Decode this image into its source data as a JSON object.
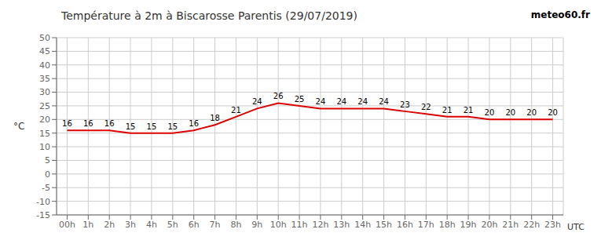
{
  "chart_data": {
    "type": "line",
    "title": "Température à 2m à Biscarosse Parentis (29/07/2019)",
    "ylabel": "°C",
    "x": [
      0,
      1,
      2,
      3,
      4,
      5,
      6,
      7,
      8,
      9,
      10,
      11,
      12,
      13,
      14,
      15,
      16,
      17,
      18,
      19,
      20,
      21,
      22,
      23
    ],
    "values": [
      16,
      16,
      16,
      15,
      15,
      15,
      16,
      18,
      21,
      24,
      26,
      25,
      24,
      24,
      24,
      24,
      23,
      22,
      21,
      21,
      20,
      20,
      20,
      20
    ],
    "color": "#dd0000",
    "xlim": [
      -0.5,
      23.5
    ],
    "xticks": [
      {
        "value": 0,
        "label": "00h"
      },
      {
        "value": 1,
        "label": "1h"
      },
      {
        "value": 2,
        "label": "2h"
      },
      {
        "value": 3,
        "label": "3h"
      },
      {
        "value": 4,
        "label": "4h"
      },
      {
        "value": 5,
        "label": "5h"
      },
      {
        "value": 6,
        "label": "6h"
      },
      {
        "value": 7,
        "label": "7h"
      },
      {
        "value": 8,
        "label": "8h"
      },
      {
        "value": 9,
        "label": "9h"
      },
      {
        "value": 10,
        "label": "10h"
      },
      {
        "value": 11,
        "label": "11h"
      },
      {
        "value": 12,
        "label": "12h"
      },
      {
        "value": 13,
        "label": "13h"
      },
      {
        "value": 14,
        "label": "14h"
      },
      {
        "value": 15,
        "label": "15h"
      },
      {
        "value": 16,
        "label": "16h"
      },
      {
        "value": 17,
        "label": "17h"
      },
      {
        "value": 18,
        "label": "18h"
      },
      {
        "value": 19,
        "label": "19h"
      },
      {
        "value": 20,
        "label": "20h"
      },
      {
        "value": 21,
        "label": "21h"
      },
      {
        "value": 22,
        "label": "22h"
      },
      {
        "value": 23,
        "label": "23h"
      }
    ],
    "ylim": [
      -15,
      50
    ],
    "yticks": [
      -15,
      -10,
      -5,
      0,
      5,
      10,
      15,
      20,
      25,
      30,
      35,
      40,
      45,
      50
    ],
    "grid": true,
    "data_labels": true,
    "annotations": [
      "meteo60.fr",
      "UTC"
    ]
  }
}
